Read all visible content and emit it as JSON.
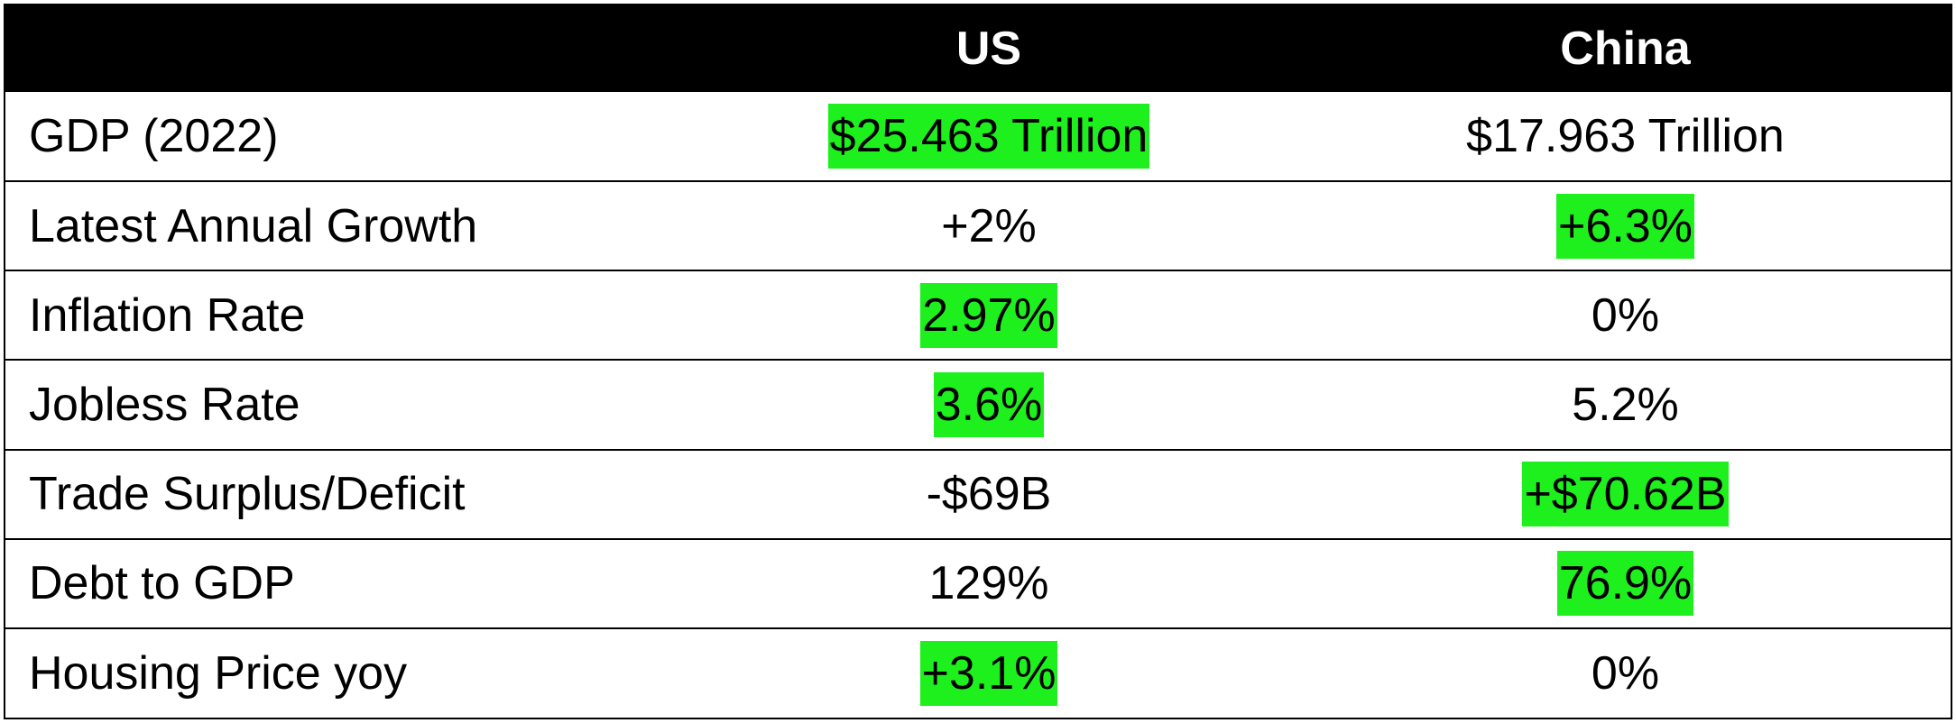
{
  "header": {
    "label_col": "",
    "us": "US",
    "china": "China"
  },
  "colors": {
    "header_bg": "#000000",
    "header_text": "#ffffff",
    "highlight": "#1ef01e"
  },
  "rows": [
    {
      "label": "GDP (2022)",
      "us": "$25.463 Trillion",
      "china": "$17.963 Trillion",
      "highlight": "us"
    },
    {
      "label": "Latest Annual Growth",
      "us": "+2%",
      "china": "+6.3%",
      "highlight": "china"
    },
    {
      "label": "Inflation Rate",
      "us": "2.97%",
      "china": "0%",
      "highlight": "us"
    },
    {
      "label": "Jobless Rate",
      "us": "3.6%",
      "china": "5.2%",
      "highlight": "us"
    },
    {
      "label": "Trade Surplus/Deficit",
      "us": "-$69B",
      "china": "+$70.62B",
      "highlight": "china"
    },
    {
      "label": "Debt to GDP",
      "us": "129%",
      "china": "76.9%",
      "highlight": "china"
    },
    {
      "label": "Housing Price yoy",
      "us": "+3.1%",
      "china": "0%",
      "highlight": "us"
    }
  ]
}
